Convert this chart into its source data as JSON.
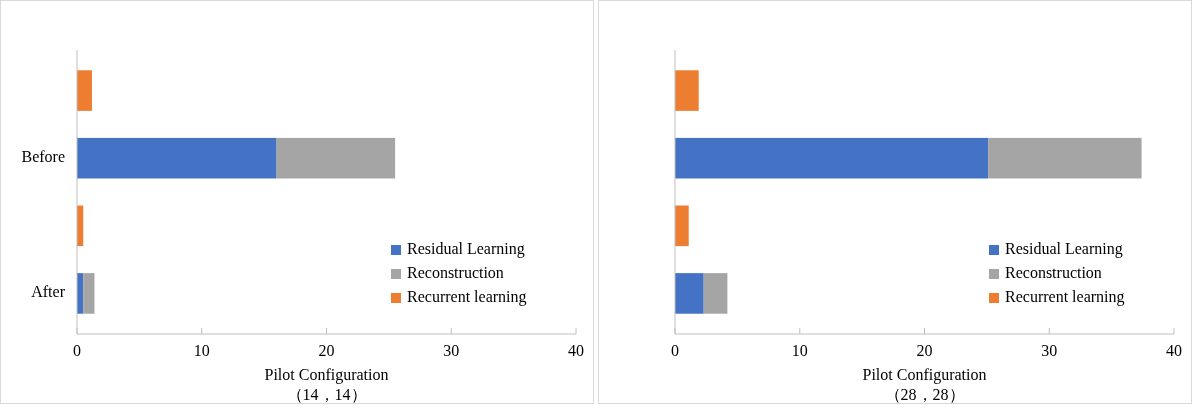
{
  "chart_data": [
    {
      "type": "bar",
      "orientation": "horizontal",
      "stacked": true,
      "xlabel": "Pilot Configuration\n（14，14）",
      "categories": [
        null,
        "Before",
        null,
        "After"
      ],
      "xlim": [
        0,
        40
      ],
      "xticks": [
        0,
        10,
        20,
        30,
        40
      ],
      "legend": "bottom right",
      "series": [
        {
          "name": "Residual Learning",
          "color": "#4472c4",
          "values": [
            null,
            16,
            null,
            0.5
          ]
        },
        {
          "name": "Reconstruction",
          "color": "#a5a5a5",
          "values": [
            null,
            9.5,
            null,
            0.9
          ]
        },
        {
          "name": "Recurrent learning",
          "color": "#ed7d31",
          "values": [
            1.2,
            null,
            0.5,
            null
          ]
        }
      ]
    },
    {
      "type": "bar",
      "orientation": "horizontal",
      "stacked": true,
      "xlabel": "Pilot Configuration\n（28，28）",
      "categories": [
        null,
        null,
        null,
        null
      ],
      "xlim": [
        0,
        40
      ],
      "xticks": [
        0,
        10,
        20,
        30,
        40
      ],
      "legend": "bottom right",
      "series": [
        {
          "name": "Residual Learning",
          "color": "#4472c4",
          "values": [
            null,
            25.1,
            null,
            2.3
          ]
        },
        {
          "name": "Reconstruction",
          "color": "#a5a5a5",
          "values": [
            null,
            12.3,
            null,
            1.9
          ]
        },
        {
          "name": "Recurrent learning",
          "color": "#ed7d31",
          "values": [
            1.9,
            null,
            1.1,
            null
          ]
        }
      ]
    }
  ]
}
